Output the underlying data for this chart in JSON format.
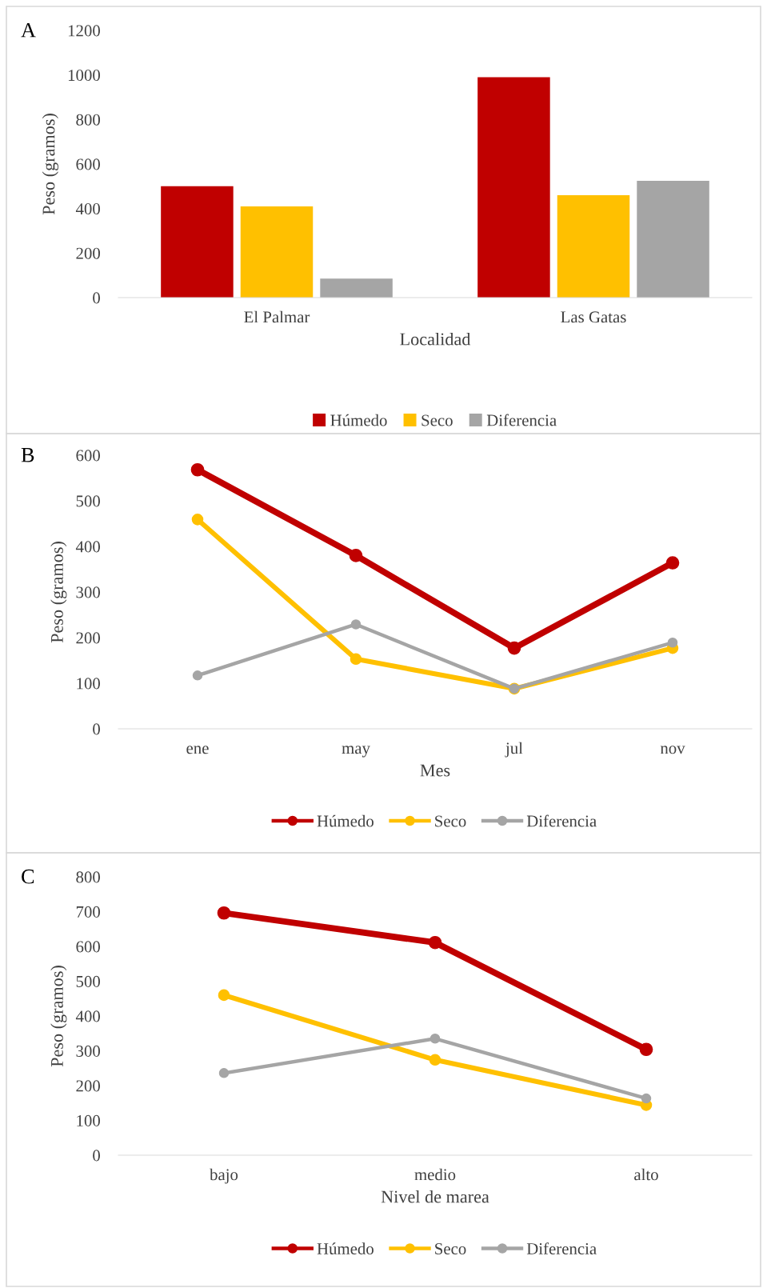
{
  "chart_data": [
    {
      "type": "bar",
      "annotations": [
        "A"
      ],
      "xlabel": "Localidad",
      "ylabel": "Peso (gramos)",
      "categories": [
        "El Palmar",
        "Las Gatas"
      ],
      "ylim": [
        0,
        1200
      ],
      "yticks": [
        0,
        200,
        400,
        600,
        800,
        1000,
        1200
      ],
      "grid": false,
      "legend": "bottom",
      "series": [
        {
          "name": "Húmedo",
          "color": "#c00000",
          "values": [
            500,
            990
          ]
        },
        {
          "name": "Seco",
          "color": "#ffc000",
          "values": [
            410,
            460
          ]
        },
        {
          "name": "Diferencia",
          "color": "#a5a5a5",
          "values": [
            85,
            525
          ]
        }
      ]
    },
    {
      "type": "line",
      "annotations": [
        "B"
      ],
      "xlabel": "Mes",
      "ylabel": "Peso (gramos)",
      "categories": [
        "ene",
        "may",
        "jul",
        "nov"
      ],
      "ylim": [
        0,
        600
      ],
      "yticks": [
        0,
        100,
        200,
        300,
        400,
        500,
        600
      ],
      "grid": false,
      "legend": "bottom",
      "marker": "circle",
      "series": [
        {
          "name": "Húmedo",
          "color": "#c00000",
          "values": [
            568,
            380,
            177,
            364
          ]
        },
        {
          "name": "Seco",
          "color": "#ffc000",
          "values": [
            459,
            153,
            88,
            177
          ]
        },
        {
          "name": "Diferencia",
          "color": "#a5a5a5",
          "values": [
            117,
            229,
            88,
            189
          ]
        }
      ]
    },
    {
      "type": "line",
      "annotations": [
        "C"
      ],
      "xlabel": "Nivel de marea",
      "ylabel": "Peso (gramos)",
      "categories": [
        "bajo",
        "medio",
        "alto"
      ],
      "ylim": [
        0,
        800
      ],
      "yticks": [
        0,
        100,
        200,
        300,
        400,
        500,
        600,
        700,
        800
      ],
      "grid": false,
      "legend": "bottom",
      "marker": "circle",
      "series": [
        {
          "name": "Húmedo",
          "color": "#c00000",
          "values": [
            696,
            611,
            304
          ]
        },
        {
          "name": "Seco",
          "color": "#ffc000",
          "values": [
            460,
            274,
            144
          ]
        },
        {
          "name": "Diferencia",
          "color": "#a5a5a5",
          "values": [
            236,
            335,
            163
          ]
        }
      ]
    }
  ]
}
